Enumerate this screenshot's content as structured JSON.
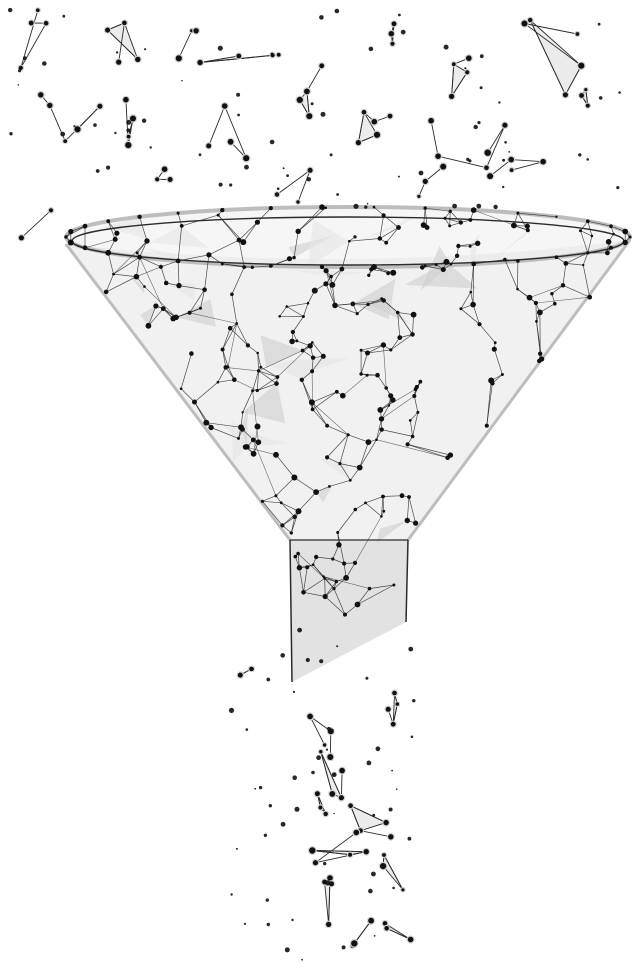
{
  "illustration": {
    "subject": "funnel-icon",
    "colors": {
      "background": "#ffffff",
      "line": "#2b2b2b",
      "node": "#111111",
      "fill": "#e6e6e6",
      "fill_dark": "#cfcfcf",
      "rim": "#bdbdbd"
    }
  }
}
